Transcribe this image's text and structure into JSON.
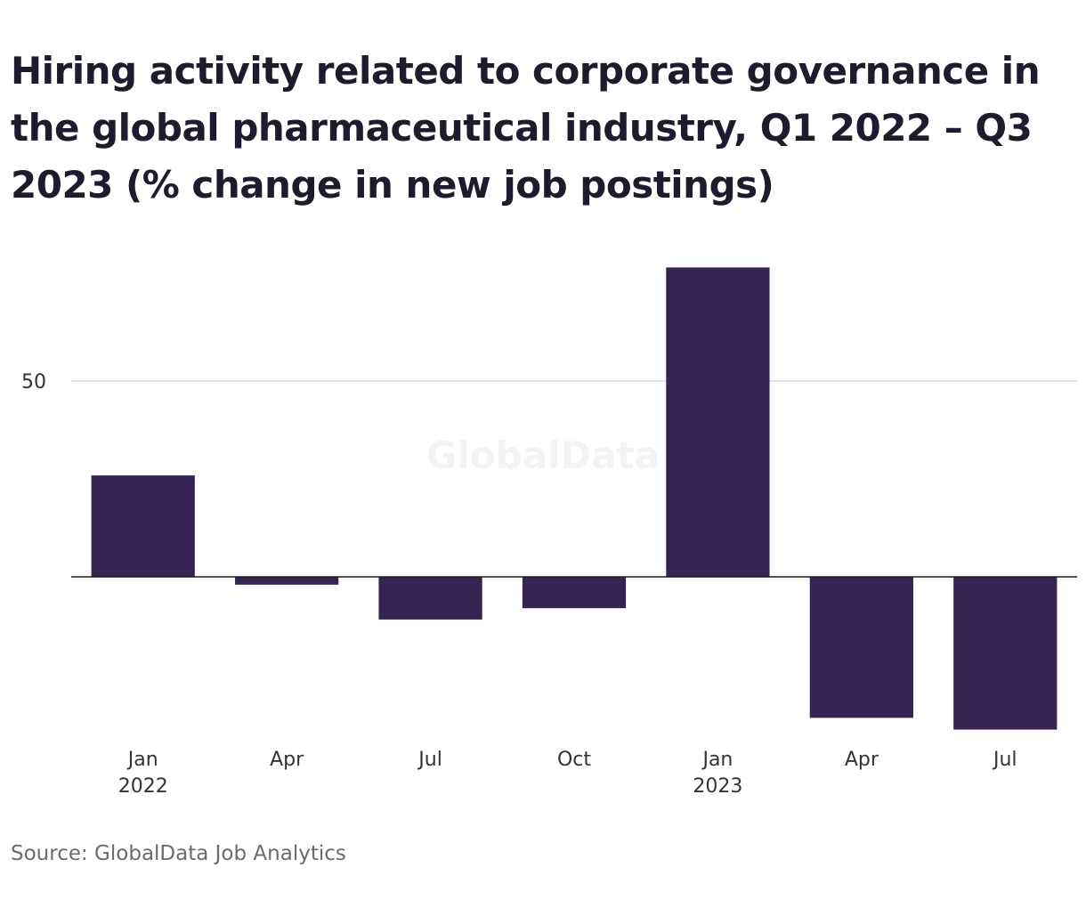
{
  "chart_data": {
    "type": "bar",
    "title": "Hiring activity related to corporate governance in the global pharmaceutical industry, Q1 2022 – Q3 2023 (% change in new job postings)",
    "categories": [
      "Q1 2022",
      "Q2 2022",
      "Q3 2022",
      "Q4 2022",
      "Q1 2023",
      "Q2 2023",
      "Q3 2023"
    ],
    "x_tick_labels": [
      {
        "line1": "Jan",
        "line2": "2022"
      },
      {
        "line1": "Apr",
        "line2": ""
      },
      {
        "line1": "Jul",
        "line2": ""
      },
      {
        "line1": "Oct",
        "line2": ""
      },
      {
        "line1": "Jan",
        "line2": "2023"
      },
      {
        "line1": "Apr",
        "line2": ""
      },
      {
        "line1": "Jul",
        "line2": ""
      }
    ],
    "values": [
      25.9,
      -2.0,
      -10.9,
      -8.0,
      79,
      -36,
      -39
    ],
    "y_ticks": [
      50
    ],
    "ylim": [
      -39,
      79
    ],
    "xlabel": "",
    "ylabel": "",
    "grid": true,
    "bar_color": "#352452"
  },
  "watermark": "GlobalData",
  "source": "Source: GlobalData Job Analytics"
}
